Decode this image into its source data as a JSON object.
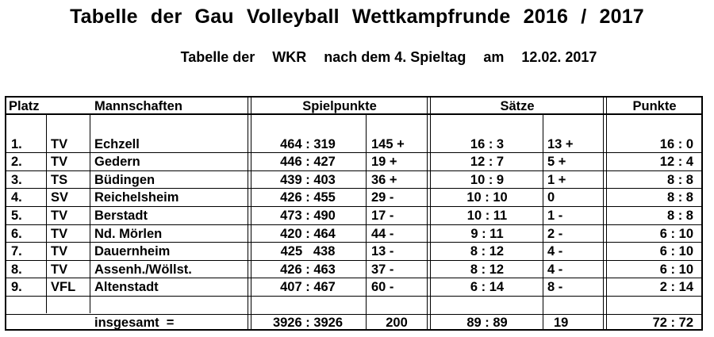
{
  "title": "Tabelle der Gau Volleyball Wettkampfrunde 2016 / 2017",
  "subtitle": {
    "part1": "Tabelle der",
    "part2": "WKR",
    "part3": "nach dem 4. Spieltag",
    "part4": "am",
    "part5": "12.02. 2017"
  },
  "headers": {
    "platz": "Platz",
    "mannschaften": "Mannschaften",
    "spielpunkte": "Spielpunkte",
    "saetze": "Sätze",
    "punkte": "Punkte"
  },
  "rows": [
    {
      "platz": "1.",
      "verein": "TV",
      "name": "Echzell",
      "spielpunkte": "464 : 319",
      "sp_diff": "145 +",
      "saetze": "16 : 3",
      "s_diff": "13 +",
      "punkte": "16 : 0"
    },
    {
      "platz": "2.",
      "verein": "TV",
      "name": "Gedern",
      "spielpunkte": "446 : 427",
      "sp_diff": "19 +",
      "saetze": "12 : 7",
      "s_diff": "5 +",
      "punkte": "12 : 4"
    },
    {
      "platz": "3.",
      "verein": "TS",
      "name": "Büdingen",
      "spielpunkte": "439 : 403",
      "sp_diff": "36 +",
      "saetze": "10 : 9",
      "s_diff": "1 +",
      "punkte": "8 : 8"
    },
    {
      "platz": "4.",
      "verein": "SV",
      "name": "Reichelsheim",
      "spielpunkte": "426 : 455",
      "sp_diff": "29 -",
      "saetze": "10 : 10",
      "s_diff": "0",
      "punkte": "8 : 8"
    },
    {
      "platz": "5.",
      "verein": "TV",
      "name": "Berstadt",
      "spielpunkte": "473 : 490",
      "sp_diff": "17 -",
      "saetze": "10 : 11",
      "s_diff": "1 -",
      "punkte": "8 : 8"
    },
    {
      "platz": "6.",
      "verein": "TV",
      "name": "Nd. Mörlen",
      "spielpunkte": "420 : 464",
      "sp_diff": "44 -",
      "saetze": "9 : 11",
      "s_diff": "2 -",
      "punkte": "6 : 10"
    },
    {
      "platz": "7.",
      "verein": "TV",
      "name": "Dauernheim",
      "spielpunkte": "425   438",
      "sp_diff": "13 -",
      "saetze": "8 : 12",
      "s_diff": "4 -",
      "punkte": "6 : 10"
    },
    {
      "platz": "8.",
      "verein": "TV",
      "name": "Assenh./Wöllst.",
      "spielpunkte": "426 : 463",
      "sp_diff": "37 -",
      "saetze": "8 : 12",
      "s_diff": "4 -",
      "punkte": "6 : 10"
    },
    {
      "platz": "9.",
      "verein": "VFL",
      "name": "Altenstadt",
      "spielpunkte": "407 : 467",
      "sp_diff": "60 -",
      "saetze": "6 : 14",
      "s_diff": "8 -",
      "punkte": "2 : 14"
    }
  ],
  "total": {
    "label": "insgesamt  =",
    "spielpunkte": "3926 : 3926",
    "sp_diff": "200",
    "saetze": "89 : 89",
    "s_diff": "19",
    "punkte": "72 : 72"
  }
}
